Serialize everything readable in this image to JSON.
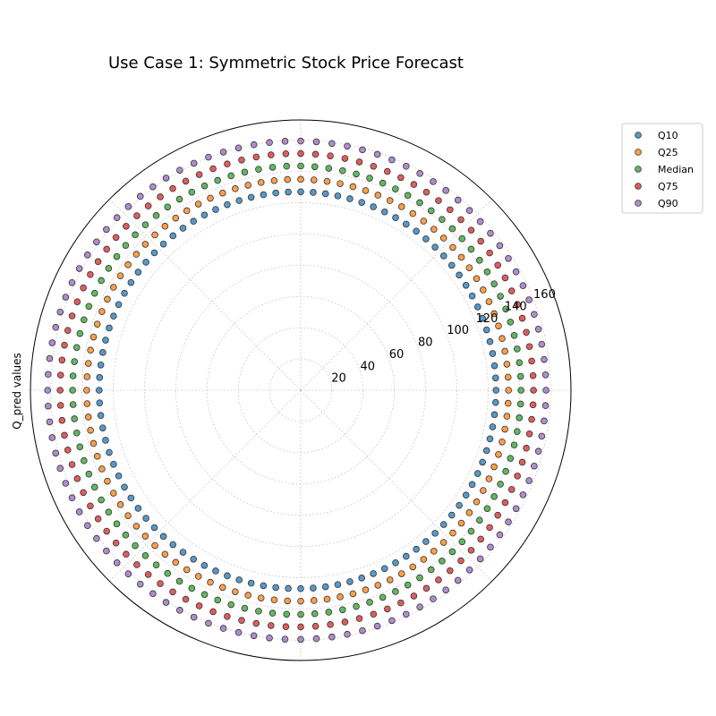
{
  "chart_data": {
    "type": "scatter",
    "projection": "polar",
    "title": "Use Case 1: Symmetric Stock Price Forecast",
    "ylabel": "Q_pred values",
    "r_ticks": [
      20,
      40,
      60,
      80,
      100,
      120,
      140,
      160
    ],
    "r_range": [
      0,
      173
    ],
    "theta_range_deg": [
      0,
      360
    ],
    "grid": true,
    "legend_position": "upper-right-outside",
    "points_per_series": 100,
    "series": [
      {
        "name": "Q10",
        "color": "#1f77b4",
        "r_start": 125,
        "r_min": 125,
        "r_max": 129
      },
      {
        "name": "Q25",
        "color": "#ff7f0e",
        "r_start": 133,
        "r_min": 133,
        "r_max": 137
      },
      {
        "name": "Median",
        "color": "#2ca02c",
        "r_start": 141,
        "r_min": 141,
        "r_max": 146
      },
      {
        "name": "Q75",
        "color": "#d62728",
        "r_start": 149,
        "r_min": 149,
        "r_max": 154
      },
      {
        "name": "Q90",
        "color": "#9467bd",
        "r_start": 157,
        "r_min": 157,
        "r_max": 162
      }
    ]
  }
}
